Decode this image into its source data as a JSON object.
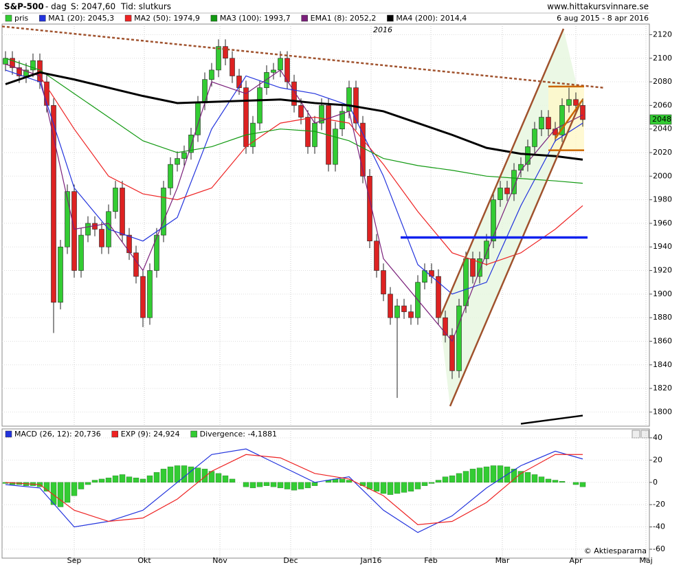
{
  "header": {
    "symbol": "S&P-500",
    "period": "- dag",
    "last": "S: 2047,60",
    "mode": "Tid: slutkurs",
    "site": "www.hittakursvinnare.se",
    "range": "6 aug 2015 - 8 apr 2016"
  },
  "chart_data": [
    {
      "type": "candlestick",
      "annotation": "2016",
      "last_price_label": 2048,
      "grid": true,
      "xlim": [
        -0.5,
        93.7
      ],
      "xticks": [
        {
          "value": 10,
          "label": "Sep"
        },
        {
          "value": 20.2,
          "label": "Okt"
        },
        {
          "value": 31.2,
          "label": "Nov"
        },
        {
          "value": 41.5,
          "label": "Dec"
        },
        {
          "value": 53.2,
          "label": "Jan16"
        },
        {
          "value": 61.9,
          "label": "Feb"
        },
        {
          "value": 72.3,
          "label": "Mar"
        },
        {
          "value": 83,
          "label": "Apr"
        },
        {
          "value": 93.2,
          "label": "Maj"
        }
      ],
      "ylim": [
        1788,
        2129
      ],
      "yticks": [
        1800,
        1820,
        1840,
        1860,
        1880,
        1900,
        1920,
        1940,
        1960,
        1980,
        2000,
        2020,
        2040,
        2060,
        2080,
        2100,
        2120
      ],
      "up_color": "#33cc33",
      "down_color": "#dd2222",
      "candles": {
        "name": "pris",
        "color": "#33cc33",
        "x": [
          0,
          1,
          2,
          3,
          4,
          5,
          6,
          7,
          8,
          9,
          10,
          11,
          12,
          13,
          14,
          15,
          16,
          17,
          18,
          19,
          20,
          21,
          22,
          23,
          24,
          25,
          26,
          27,
          28,
          29,
          30,
          31,
          32,
          33,
          34,
          35,
          36,
          37,
          38,
          39,
          40,
          41,
          42,
          43,
          44,
          45,
          46,
          47,
          48,
          49,
          50,
          51,
          52,
          53,
          54,
          55,
          56,
          57,
          58,
          59,
          60,
          61,
          62,
          63,
          64,
          65,
          66,
          67,
          68,
          69,
          70,
          71,
          72,
          73,
          74,
          75,
          76,
          77,
          78,
          79,
          80,
          81,
          82,
          83,
          84
        ],
        "open": [
          2095,
          2100,
          2092,
          2085,
          2090,
          2098,
          2080,
          2060,
          1893,
          1940,
          1987,
          1920,
          1950,
          1960,
          1955,
          1940,
          1970,
          1990,
          1950,
          1935,
          1915,
          1880,
          1920,
          1950,
          1990,
          2010,
          2015,
          2020,
          2035,
          2062,
          2082,
          2090,
          2110,
          2100,
          2085,
          2075,
          2025,
          2045,
          2075,
          2088,
          2090,
          2100,
          2080,
          2060,
          2050,
          2025,
          2045,
          2060,
          2010,
          2040,
          2055,
          2075,
          2045,
          2000,
          1945,
          1920,
          1900,
          1880,
          1890,
          1885,
          1880,
          1910,
          1920,
          1915,
          1880,
          1865,
          1835,
          1890,
          1930,
          1915,
          1930,
          1945,
          1980,
          1990,
          1985,
          2005,
          2010,
          2025,
          2040,
          2050,
          2040,
          2035,
          2060,
          2065,
          2060
        ],
        "high": [
          2106,
          2106,
          2098,
          2096,
          2104,
          2104,
          2086,
          2066,
          1946,
          1993,
          1993,
          1956,
          1966,
          1966,
          1961,
          1976,
          1996,
          1996,
          1956,
          1941,
          1921,
          1926,
          1956,
          1996,
          2016,
          2021,
          2026,
          2041,
          2068,
          2088,
          2096,
          2116,
          2116,
          2106,
          2091,
          2081,
          2051,
          2081,
          2094,
          2096,
          2106,
          2106,
          2086,
          2066,
          2056,
          2051,
          2066,
          2066,
          2046,
          2061,
          2081,
          2081,
          2051,
          2006,
          1951,
          1926,
          1906,
          1896,
          1896,
          1891,
          1916,
          1926,
          1926,
          1921,
          1886,
          1871,
          1896,
          1936,
          1936,
          1936,
          1951,
          1986,
          1996,
          1996,
          2011,
          2016,
          2031,
          2046,
          2056,
          2056,
          2046,
          2066,
          2075,
          2071,
          2066
        ],
        "low": [
          2089,
          2086,
          2079,
          2079,
          2084,
          2074,
          2054,
          1867,
          1887,
          1934,
          1914,
          1914,
          1944,
          1949,
          1934,
          1934,
          1964,
          1944,
          1929,
          1909,
          1872,
          1874,
          1914,
          1944,
          1984,
          2004,
          2009,
          2014,
          2029,
          2056,
          2076,
          2084,
          2094,
          2079,
          2069,
          2019,
          2019,
          2039,
          2069,
          2082,
          2084,
          2074,
          2054,
          2044,
          2019,
          2019,
          2039,
          2004,
          2004,
          2034,
          2049,
          2039,
          1994,
          1939,
          1914,
          1894,
          1874,
          1812,
          1879,
          1874,
          1874,
          1904,
          1909,
          1874,
          1859,
          1828,
          1829,
          1884,
          1909,
          1909,
          1924,
          1939,
          1974,
          1979,
          1979,
          1999,
          2004,
          2019,
          2034,
          2034,
          2029,
          2029,
          2054,
          2054,
          2042
        ],
        "close": [
          2100,
          2092,
          2085,
          2090,
          2098,
          2080,
          2060,
          1893,
          1940,
          1987,
          1920,
          1950,
          1960,
          1955,
          1940,
          1970,
          1990,
          1950,
          1935,
          1915,
          1880,
          1920,
          1950,
          1990,
          2010,
          2015,
          2020,
          2035,
          2062,
          2082,
          2090,
          2110,
          2100,
          2085,
          2075,
          2025,
          2045,
          2075,
          2088,
          2090,
          2100,
          2080,
          2060,
          2050,
          2025,
          2045,
          2060,
          2010,
          2040,
          2055,
          2075,
          2045,
          2000,
          1945,
          1920,
          1900,
          1880,
          1890,
          1885,
          1880,
          1910,
          1920,
          1915,
          1880,
          1865,
          1835,
          1890,
          1930,
          1915,
          1930,
          1945,
          1980,
          1990,
          1985,
          2005,
          2010,
          2025,
          2040,
          2050,
          2040,
          2035,
          2060,
          2065,
          2060,
          2048
        ]
      },
      "series": [
        {
          "name": "MA1 (20): 2045,3",
          "color": "#2233dd",
          "x": [
            0,
            5,
            10,
            15,
            20,
            25,
            30,
            35,
            40,
            45,
            50,
            55,
            60,
            65,
            70,
            75,
            80,
            84
          ],
          "values": [
            2090,
            2080,
            1990,
            1955,
            1945,
            1965,
            2040,
            2085,
            2075,
            2070,
            2060,
            2000,
            1925,
            1900,
            1910,
            1975,
            2030,
            2045
          ]
        },
        {
          "name": "MA2 (50): 1974,9",
          "color": "#ee2222",
          "x": [
            0,
            5,
            10,
            15,
            20,
            25,
            30,
            35,
            40,
            45,
            50,
            55,
            60,
            65,
            70,
            75,
            80,
            84
          ],
          "values": [
            2095,
            2085,
            2040,
            2000,
            1985,
            1980,
            1990,
            2025,
            2045,
            2050,
            2045,
            2010,
            1970,
            1935,
            1925,
            1935,
            1955,
            1975
          ]
        },
        {
          "name": "MA3 (100): 1993,7",
          "color": "#119911",
          "x": [
            0,
            5,
            10,
            15,
            20,
            25,
            30,
            35,
            40,
            45,
            50,
            55,
            60,
            65,
            70,
            75,
            80,
            84
          ],
          "values": [
            2100,
            2090,
            2070,
            2050,
            2030,
            2020,
            2025,
            2035,
            2040,
            2038,
            2030,
            2015,
            2009,
            2005,
            2000,
            1998,
            1996,
            1994
          ]
        },
        {
          "name": "EMA1 (8): 2052,2",
          "color": "#7a1f7a",
          "x": [
            0,
            5,
            10,
            15,
            20,
            25,
            30,
            35,
            40,
            45,
            50,
            55,
            60,
            65,
            70,
            75,
            80,
            84
          ],
          "values": [
            2095,
            2085,
            1955,
            1960,
            1920,
            1990,
            2080,
            2070,
            2090,
            2045,
            2055,
            1930,
            1895,
            1860,
            1935,
            2005,
            2040,
            2052
          ]
        },
        {
          "name": "MA4 (200): 2014,4",
          "color": "#000000",
          "x": [
            0,
            5,
            10,
            15,
            20,
            25,
            30,
            35,
            40,
            45,
            50,
            55,
            60,
            65,
            70,
            75,
            80,
            84
          ],
          "values": [
            2078,
            2088,
            2082,
            2075,
            2068,
            2062,
            2063,
            2064,
            2065,
            2062,
            2060,
            2055,
            2045,
            2035,
            2024,
            2019,
            2017,
            2014
          ]
        }
      ],
      "trendlines": [
        {
          "color": "#a0522d",
          "dashed": true,
          "x": [
            -0.5,
            87
          ],
          "y": [
            2127,
            2075
          ]
        },
        {
          "color": "#a0522d",
          "dashed": false,
          "x": [
            63.2,
            81.2
          ],
          "y": [
            1880,
            2125
          ]
        },
        {
          "color": "#a0522d",
          "dashed": false,
          "x": [
            64.7,
            83.7
          ],
          "y": [
            1805,
            2063
          ]
        },
        {
          "color": "#1122ee",
          "dashed": false,
          "x": [
            57.5,
            84.7
          ],
          "y": [
            1948,
            1948
          ]
        },
        {
          "color": "#cc6600",
          "dashed": false,
          "x": [
            79,
            84.2
          ],
          "y": [
            2076,
            2076
          ]
        },
        {
          "color": "#cc6600",
          "dashed": false,
          "x": [
            79,
            84.2
          ],
          "y": [
            2022,
            2022
          ]
        },
        {
          "color": "#cc6600",
          "dashed": false,
          "x": [
            80,
            84
          ],
          "y": [
            2032,
            2065
          ]
        },
        {
          "color": "#000000",
          "dashed": false,
          "x": [
            75,
            84
          ],
          "y": [
            1790,
            1797
          ]
        }
      ]
    },
    {
      "type": "macd",
      "credit": "© Aktiespararna",
      "grid": true,
      "ylim": [
        -68,
        48
      ],
      "yticks": [
        -60,
        -40,
        -20,
        0,
        20,
        40
      ],
      "series": [
        {
          "name": "MACD (26, 12): 20,736",
          "color": "#2233dd",
          "x": [
            0,
            5,
            10,
            15,
            20,
            25,
            30,
            35,
            40,
            45,
            50,
            55,
            60,
            65,
            70,
            75,
            80,
            84
          ],
          "values": [
            -2,
            -5,
            -40,
            -35,
            -25,
            0,
            25,
            30,
            15,
            0,
            5,
            -25,
            -45,
            -30,
            -5,
            15,
            28,
            21
          ]
        },
        {
          "name": "EXP (9): 24,924",
          "color": "#ee2222",
          "x": [
            0,
            5,
            10,
            15,
            20,
            25,
            30,
            35,
            40,
            45,
            50,
            55,
            60,
            65,
            70,
            75,
            80,
            84
          ],
          "values": [
            0,
            -2,
            -25,
            -35,
            -32,
            -15,
            10,
            25,
            22,
            8,
            3,
            -12,
            -38,
            -35,
            -18,
            8,
            25,
            25
          ]
        }
      ],
      "divergence": {
        "name": "Divergence: -4,1881",
        "color": "#33cc33",
        "values": [
          -1,
          -2,
          -2,
          -3,
          -3,
          -4,
          -8,
          -20,
          -22,
          -18,
          -12,
          -6,
          -2,
          2,
          3,
          4,
          6,
          7,
          5,
          4,
          3,
          6,
          9,
          12,
          14,
          15,
          15,
          14,
          13,
          12,
          10,
          8,
          6,
          3,
          0,
          -4,
          -5,
          -4,
          -3,
          -4,
          -5,
          -6,
          -7,
          -6,
          -5,
          -3,
          0,
          2,
          3,
          3,
          2,
          0,
          -3,
          -6,
          -8,
          -10,
          -11,
          -10,
          -9,
          -8,
          -6,
          -3,
          -1,
          2,
          5,
          6,
          8,
          10,
          12,
          13,
          14,
          15,
          15,
          14,
          12,
          10,
          9,
          7,
          5,
          3,
          2,
          1,
          0,
          -2,
          -4
        ]
      }
    }
  ]
}
